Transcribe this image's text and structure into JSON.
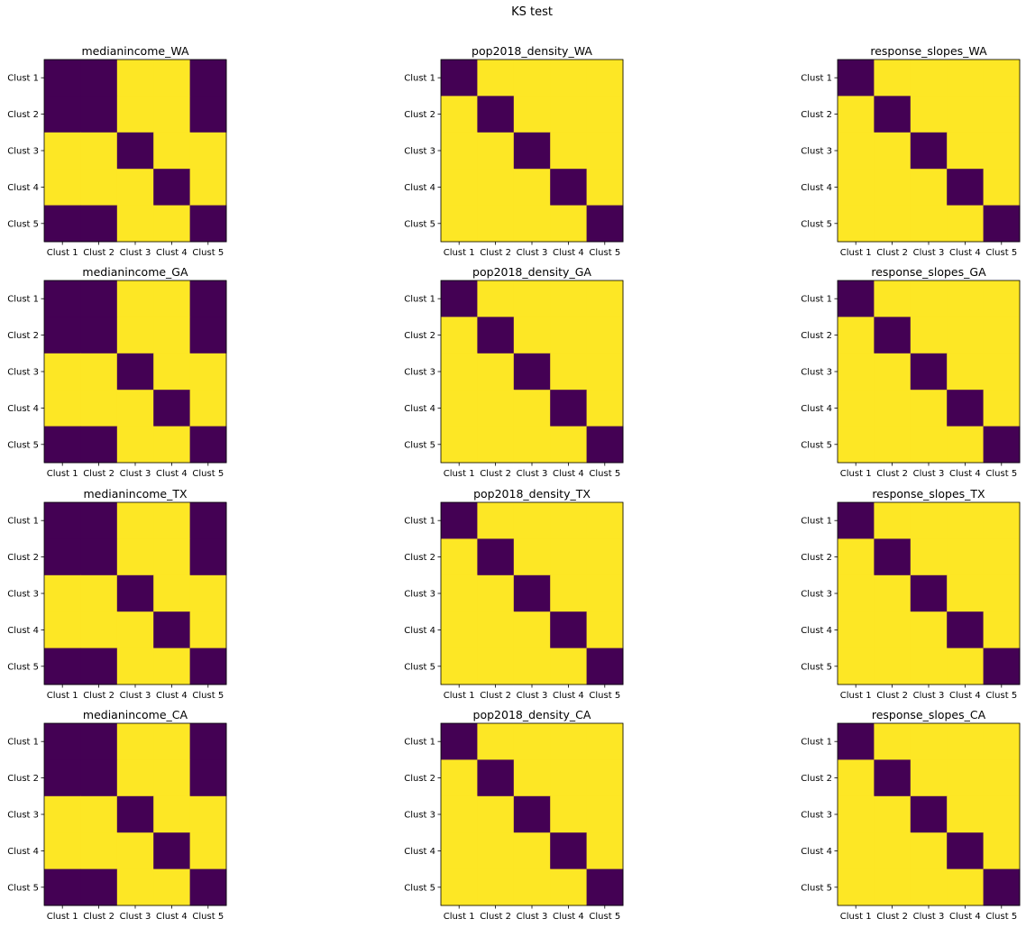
{
  "figure_title": "KS test",
  "colors": {
    "low": "#440154",
    "high": "#fde725"
  },
  "chart_data": [
    {
      "type": "heatmap",
      "title": "medianincome_WA",
      "x_categories": [
        "Clust 1",
        "Clust 2",
        "Clust 3",
        "Clust 4",
        "Clust 5"
      ],
      "y_categories": [
        "Clust 1",
        "Clust 2",
        "Clust 3",
        "Clust 4",
        "Clust 5"
      ],
      "values": [
        [
          0,
          0,
          1,
          1,
          0
        ],
        [
          0,
          0,
          1,
          1,
          0
        ],
        [
          1,
          1,
          0,
          1,
          1
        ],
        [
          1,
          1,
          1,
          0,
          1
        ],
        [
          0,
          0,
          1,
          1,
          0
        ]
      ],
      "colormap": "viridis"
    },
    {
      "type": "heatmap",
      "title": "pop2018_density_WA",
      "x_categories": [
        "Clust 1",
        "Clust 2",
        "Clust 3",
        "Clust 4",
        "Clust 5"
      ],
      "y_categories": [
        "Clust 1",
        "Clust 2",
        "Clust 3",
        "Clust 4",
        "Clust 5"
      ],
      "values": [
        [
          0,
          1,
          1,
          1,
          1
        ],
        [
          1,
          0,
          1,
          1,
          1
        ],
        [
          1,
          1,
          0,
          1,
          1
        ],
        [
          1,
          1,
          1,
          0,
          1
        ],
        [
          1,
          1,
          1,
          1,
          0
        ]
      ],
      "colormap": "viridis"
    },
    {
      "type": "heatmap",
      "title": "response_slopes_WA",
      "x_categories": [
        "Clust 1",
        "Clust 2",
        "Clust 3",
        "Clust 4",
        "Clust 5"
      ],
      "y_categories": [
        "Clust 1",
        "Clust 2",
        "Clust 3",
        "Clust 4",
        "Clust 5"
      ],
      "values": [
        [
          0,
          1,
          1,
          1,
          1
        ],
        [
          1,
          0,
          1,
          1,
          1
        ],
        [
          1,
          1,
          0,
          1,
          1
        ],
        [
          1,
          1,
          1,
          0,
          1
        ],
        [
          1,
          1,
          1,
          1,
          0
        ]
      ],
      "colormap": "viridis"
    },
    {
      "type": "heatmap",
      "title": "medianincome_GA",
      "x_categories": [
        "Clust 1",
        "Clust 2",
        "Clust 3",
        "Clust 4",
        "Clust 5"
      ],
      "y_categories": [
        "Clust 1",
        "Clust 2",
        "Clust 3",
        "Clust 4",
        "Clust 5"
      ],
      "values": [
        [
          0,
          0,
          1,
          1,
          0
        ],
        [
          0,
          0,
          1,
          1,
          0
        ],
        [
          1,
          1,
          0,
          1,
          1
        ],
        [
          1,
          1,
          1,
          0,
          1
        ],
        [
          0,
          0,
          1,
          1,
          0
        ]
      ],
      "colormap": "viridis"
    },
    {
      "type": "heatmap",
      "title": "pop2018_density_GA",
      "x_categories": [
        "Clust 1",
        "Clust 2",
        "Clust 3",
        "Clust 4",
        "Clust 5"
      ],
      "y_categories": [
        "Clust 1",
        "Clust 2",
        "Clust 3",
        "Clust 4",
        "Clust 5"
      ],
      "values": [
        [
          0,
          1,
          1,
          1,
          1
        ],
        [
          1,
          0,
          1,
          1,
          1
        ],
        [
          1,
          1,
          0,
          1,
          1
        ],
        [
          1,
          1,
          1,
          0,
          1
        ],
        [
          1,
          1,
          1,
          1,
          0
        ]
      ],
      "colormap": "viridis"
    },
    {
      "type": "heatmap",
      "title": "response_slopes_GA",
      "x_categories": [
        "Clust 1",
        "Clust 2",
        "Clust 3",
        "Clust 4",
        "Clust 5"
      ],
      "y_categories": [
        "Clust 1",
        "Clust 2",
        "Clust 3",
        "Clust 4",
        "Clust 5"
      ],
      "values": [
        [
          0,
          1,
          1,
          1,
          1
        ],
        [
          1,
          0,
          1,
          1,
          1
        ],
        [
          1,
          1,
          0,
          1,
          1
        ],
        [
          1,
          1,
          1,
          0,
          1
        ],
        [
          1,
          1,
          1,
          1,
          0
        ]
      ],
      "colormap": "viridis"
    },
    {
      "type": "heatmap",
      "title": "medianincome_TX",
      "x_categories": [
        "Clust 1",
        "Clust 2",
        "Clust 3",
        "Clust 4",
        "Clust 5"
      ],
      "y_categories": [
        "Clust 1",
        "Clust 2",
        "Clust 3",
        "Clust 4",
        "Clust 5"
      ],
      "values": [
        [
          0,
          0,
          1,
          1,
          0
        ],
        [
          0,
          0,
          1,
          1,
          0
        ],
        [
          1,
          1,
          0,
          1,
          1
        ],
        [
          1,
          1,
          1,
          0,
          1
        ],
        [
          0,
          0,
          1,
          1,
          0
        ]
      ],
      "colormap": "viridis"
    },
    {
      "type": "heatmap",
      "title": "pop2018_density_TX",
      "x_categories": [
        "Clust 1",
        "Clust 2",
        "Clust 3",
        "Clust 4",
        "Clust 5"
      ],
      "y_categories": [
        "Clust 1",
        "Clust 2",
        "Clust 3",
        "Clust 4",
        "Clust 5"
      ],
      "values": [
        [
          0,
          1,
          1,
          1,
          1
        ],
        [
          1,
          0,
          1,
          1,
          1
        ],
        [
          1,
          1,
          0,
          1,
          1
        ],
        [
          1,
          1,
          1,
          0,
          1
        ],
        [
          1,
          1,
          1,
          1,
          0
        ]
      ],
      "colormap": "viridis"
    },
    {
      "type": "heatmap",
      "title": "response_slopes_TX",
      "x_categories": [
        "Clust 1",
        "Clust 2",
        "Clust 3",
        "Clust 4",
        "Clust 5"
      ],
      "y_categories": [
        "Clust 1",
        "Clust 2",
        "Clust 3",
        "Clust 4",
        "Clust 5"
      ],
      "values": [
        [
          0,
          1,
          1,
          1,
          1
        ],
        [
          1,
          0,
          1,
          1,
          1
        ],
        [
          1,
          1,
          0,
          1,
          1
        ],
        [
          1,
          1,
          1,
          0,
          1
        ],
        [
          1,
          1,
          1,
          1,
          0
        ]
      ],
      "colormap": "viridis"
    },
    {
      "type": "heatmap",
      "title": "medianincome_CA",
      "x_categories": [
        "Clust 1",
        "Clust 2",
        "Clust 3",
        "Clust 4",
        "Clust 5"
      ],
      "y_categories": [
        "Clust 1",
        "Clust 2",
        "Clust 3",
        "Clust 4",
        "Clust 5"
      ],
      "values": [
        [
          0,
          0,
          1,
          1,
          0
        ],
        [
          0,
          0,
          1,
          1,
          0
        ],
        [
          1,
          1,
          0,
          1,
          1
        ],
        [
          1,
          1,
          1,
          0,
          1
        ],
        [
          0,
          0,
          1,
          1,
          0
        ]
      ],
      "colormap": "viridis"
    },
    {
      "type": "heatmap",
      "title": "pop2018_density_CA",
      "x_categories": [
        "Clust 1",
        "Clust 2",
        "Clust 3",
        "Clust 4",
        "Clust 5"
      ],
      "y_categories": [
        "Clust 1",
        "Clust 2",
        "Clust 3",
        "Clust 4",
        "Clust 5"
      ],
      "values": [
        [
          0,
          1,
          1,
          1,
          1
        ],
        [
          1,
          0,
          1,
          1,
          1
        ],
        [
          1,
          1,
          0,
          1,
          1
        ],
        [
          1,
          1,
          1,
          0,
          1
        ],
        [
          1,
          1,
          1,
          1,
          0
        ]
      ],
      "colormap": "viridis"
    },
    {
      "type": "heatmap",
      "title": "response_slopes_CA",
      "x_categories": [
        "Clust 1",
        "Clust 2",
        "Clust 3",
        "Clust 4",
        "Clust 5"
      ],
      "y_categories": [
        "Clust 1",
        "Clust 2",
        "Clust 3",
        "Clust 4",
        "Clust 5"
      ],
      "values": [
        [
          0,
          1,
          1,
          1,
          1
        ],
        [
          1,
          0,
          1,
          1,
          1
        ],
        [
          1,
          1,
          0,
          1,
          1
        ],
        [
          1,
          1,
          1,
          0,
          1
        ],
        [
          1,
          1,
          1,
          1,
          0
        ]
      ],
      "colormap": "viridis"
    }
  ]
}
